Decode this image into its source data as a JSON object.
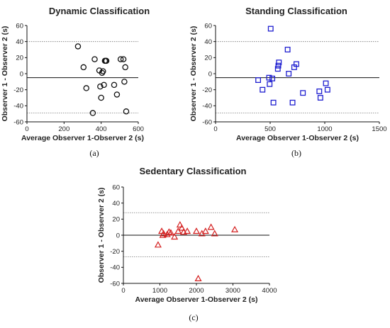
{
  "chart_data": [
    {
      "type": "scatter",
      "panel_label": "(a)",
      "title": "Dynamic Classification",
      "xlabel": "Average Observer 1-Observer 2 (s)",
      "ylabel": "Observer 1 - Observer 2 (s)",
      "xlim": [
        0,
        600
      ],
      "ylim": [
        -60,
        60
      ],
      "xticks": [
        0,
        200,
        400,
        600
      ],
      "yticks": [
        -60,
        -40,
        -20,
        0,
        20,
        40,
        60
      ],
      "mean_diff": -5,
      "upper_limit": 40,
      "lower_limit": -49,
      "marker": "circle",
      "color": "#111111",
      "x": [
        275,
        305,
        320,
        355,
        365,
        390,
        395,
        400,
        405,
        410,
        415,
        420,
        425,
        428,
        470,
        485,
        505,
        520,
        525,
        530,
        535
      ],
      "y": [
        34,
        8,
        -18,
        -49,
        18,
        4,
        -16,
        -30,
        1,
        3,
        -14,
        16,
        16,
        16,
        -14,
        -26,
        18,
        18,
        -10,
        8,
        -47
      ]
    },
    {
      "type": "scatter",
      "panel_label": "(b)",
      "title": "Standing Classification",
      "xlabel": "Average Observer 1-Observer 2 (s)",
      "ylabel": "Observer 1 - Observer 2 (s)",
      "xlim": [
        0,
        1500
      ],
      "ylim": [
        -60,
        60
      ],
      "xticks": [
        0,
        500,
        1000,
        1500
      ],
      "yticks": [
        -60,
        -40,
        -20,
        0,
        20,
        40,
        60
      ],
      "mean_diff": -5,
      "upper_limit": 40,
      "lower_limit": -49,
      "marker": "square",
      "color": "#1f1fd0",
      "x": [
        390,
        430,
        490,
        495,
        505,
        520,
        530,
        570,
        575,
        580,
        660,
        670,
        705,
        720,
        740,
        800,
        950,
        960,
        1010,
        1025
      ],
      "y": [
        -8,
        -20,
        -5,
        -13,
        56,
        -6,
        -36,
        6,
        10,
        14,
        30,
        0,
        -36,
        8,
        12,
        -24,
        -22,
        -30,
        -12,
        -20
      ]
    },
    {
      "type": "scatter",
      "panel_label": "(c)",
      "title": "Sedentary  Classification",
      "xlabel": "Average Observer 1-Observer 2 (s)",
      "ylabel": "Observer 1 - Observer 2 (s)",
      "xlim": [
        0,
        4000
      ],
      "ylim": [
        -60,
        60
      ],
      "xticks": [
        0,
        1000,
        2000,
        3000,
        4000
      ],
      "yticks": [
        -60,
        -40,
        -20,
        0,
        20,
        40,
        60
      ],
      "mean_diff": 0,
      "upper_limit": 28,
      "lower_limit": -27,
      "marker": "triangle",
      "color": "#d42020",
      "x": [
        950,
        1050,
        1080,
        1100,
        1200,
        1250,
        1300,
        1400,
        1500,
        1550,
        1600,
        1650,
        1750,
        2000,
        2050,
        2150,
        2250,
        2400,
        2500,
        3050
      ],
      "y": [
        -12,
        5,
        0,
        2,
        1,
        4,
        3,
        -2,
        5,
        13,
        9,
        4,
        5,
        5,
        -54,
        2,
        5,
        10,
        2,
        7
      ]
    }
  ]
}
